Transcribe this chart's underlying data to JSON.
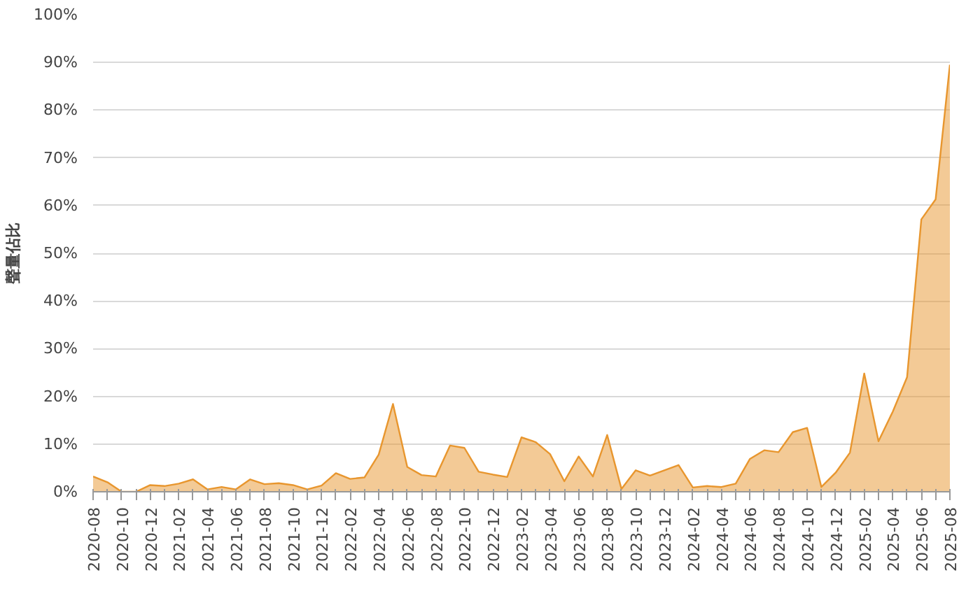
{
  "chart_data": {
    "type": "area",
    "ylabel": "聲量佔比",
    "categories": [
      "2020-08",
      null,
      "2020-10",
      null,
      "2020-12",
      null,
      "2021-02",
      null,
      "2021-04",
      null,
      "2021-06",
      null,
      "2021-08",
      null,
      "2021-10",
      null,
      "2021-12",
      null,
      "2022-02",
      null,
      "2022-04",
      null,
      "2022-06",
      null,
      "2022-08",
      null,
      "2022-10",
      null,
      "2022-12",
      null,
      "2023-02",
      null,
      "2023-04",
      null,
      "2023-06",
      null,
      "2023-08",
      null,
      "2023-10",
      null,
      "2023-12",
      null,
      "2024-02",
      null,
      "2024-04",
      null,
      "2024-06",
      null,
      "2024-08",
      null,
      "2024-10",
      null,
      "2024-12",
      null,
      "2025-02",
      null,
      "2025-04",
      null,
      "2025-06",
      null,
      "2025-08"
    ],
    "series": [
      {
        "color": "#e8962e",
        "values": [
          3.2,
          2.0,
          0,
          0,
          1.4,
          1.2,
          1.7,
          2.6,
          0.5,
          1.0,
          0.5,
          2.6,
          1.6,
          1.8,
          1.4,
          0.5,
          1.3,
          3.9,
          2.7,
          3.0,
          7.8,
          18.4,
          5.2,
          3.5,
          3.2,
          9.7,
          9.2,
          4.2,
          3.6,
          3.1,
          11.4,
          10.4,
          7.9,
          2.2,
          7.4,
          3.2,
          11.9,
          0.6,
          4.5,
          3.4,
          4.5,
          5.6,
          0.9,
          1.2,
          1.0,
          1.7,
          6.9,
          8.7,
          8.3,
          12.5,
          13.4,
          1.0,
          4.0,
          8.2,
          24.8,
          10.6,
          16.8,
          24.0,
          57.1,
          61.3,
          89.5
        ]
      }
    ],
    "ylim": [
      0,
      100
    ],
    "yticks": [
      {
        "value": 0,
        "label": "0%"
      },
      {
        "value": 10,
        "label": "10%"
      },
      {
        "value": 20,
        "label": "20%"
      },
      {
        "value": 30,
        "label": "30%"
      },
      {
        "value": 40,
        "label": "40%"
      },
      {
        "value": 50,
        "label": "50%"
      },
      {
        "value": 60,
        "label": "60%"
      },
      {
        "value": 70,
        "label": "70%"
      },
      {
        "value": 80,
        "label": "80%"
      },
      {
        "value": 90,
        "label": "90%"
      },
      {
        "value": 100,
        "label": "100%"
      }
    ],
    "grid": "y"
  }
}
